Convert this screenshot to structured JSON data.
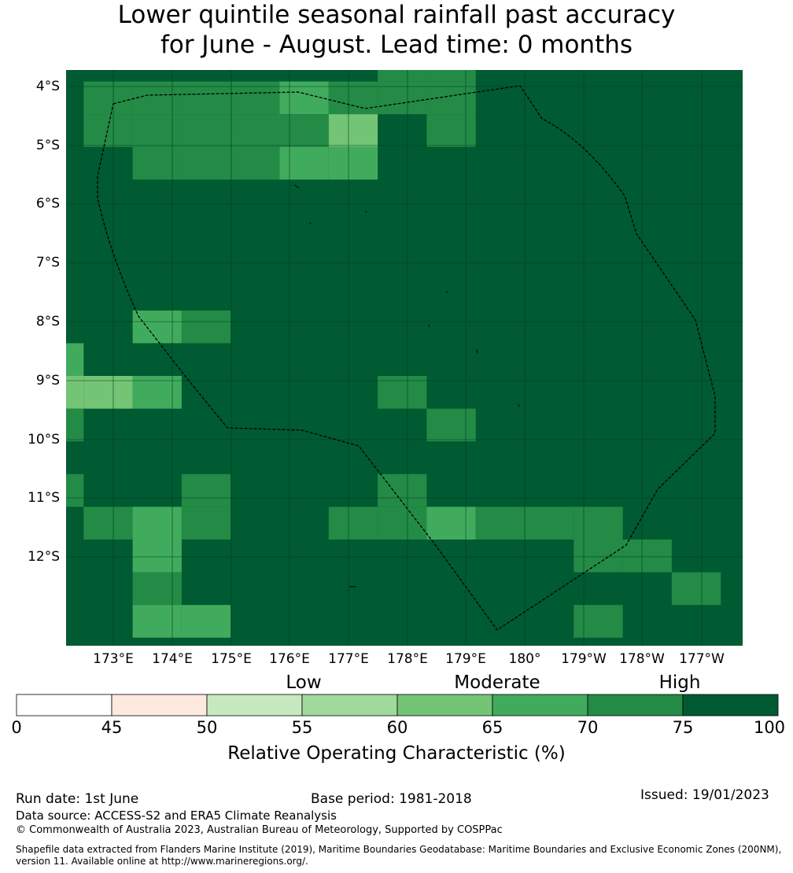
{
  "title_line1": "Lower quintile seasonal rainfall past accuracy",
  "title_line2": "for June - August. Lead time: 0 months",
  "map": {
    "lat_labels": [
      "4°S",
      "5°S",
      "6°S",
      "7°S",
      "8°S",
      "9°S",
      "10°S",
      "11°S",
      "12°S"
    ],
    "lon_labels": [
      "173°E",
      "174°E",
      "175°E",
      "176°E",
      "177°E",
      "178°E",
      "179°E",
      "180°",
      "179°W",
      "178°W",
      "177°W"
    ],
    "background_value": 80,
    "cells": [
      {
        "lon_index": 7,
        "lat_index": 0,
        "value": 72
      },
      {
        "lon_index": 8,
        "lat_index": 0,
        "value": 72
      },
      {
        "lon_index": 1,
        "lat_index": 1,
        "value": 72
      },
      {
        "lon_index": 2,
        "lat_index": 1,
        "value": 72
      },
      {
        "lon_index": 3,
        "lat_index": 1,
        "value": 72
      },
      {
        "lon_index": 4,
        "lat_index": 1,
        "value": 72
      },
      {
        "lon_index": 5,
        "lat_index": 1,
        "value": 67
      },
      {
        "lon_index": 6,
        "lat_index": 1,
        "value": 72
      },
      {
        "lon_index": 7,
        "lat_index": 1,
        "value": 72
      },
      {
        "lon_index": 8,
        "lat_index": 1,
        "value": 72
      },
      {
        "lon_index": 1,
        "lat_index": 2,
        "value": 72
      },
      {
        "lon_index": 2,
        "lat_index": 2,
        "value": 72
      },
      {
        "lon_index": 3,
        "lat_index": 2,
        "value": 72
      },
      {
        "lon_index": 4,
        "lat_index": 2,
        "value": 72
      },
      {
        "lon_index": 5,
        "lat_index": 2,
        "value": 72
      },
      {
        "lon_index": 6,
        "lat_index": 2,
        "value": 62
      },
      {
        "lon_index": 8,
        "lat_index": 2,
        "value": 72
      },
      {
        "lon_index": 2,
        "lat_index": 3,
        "value": 72
      },
      {
        "lon_index": 3,
        "lat_index": 3,
        "value": 72
      },
      {
        "lon_index": 4,
        "lat_index": 3,
        "value": 72
      },
      {
        "lon_index": 5,
        "lat_index": 3,
        "value": 67
      },
      {
        "lon_index": 6,
        "lat_index": 3,
        "value": 67
      },
      {
        "lon_index": 2,
        "lat_index": 8,
        "value": 67
      },
      {
        "lon_index": 3,
        "lat_index": 8,
        "value": 72
      },
      {
        "lon_index": 0,
        "lat_index": 9,
        "value": 67
      },
      {
        "lon_index": 0,
        "lat_index": 10,
        "value": 62
      },
      {
        "lon_index": 1,
        "lat_index": 10,
        "value": 62
      },
      {
        "lon_index": 2,
        "lat_index": 10,
        "value": 67
      },
      {
        "lon_index": 7,
        "lat_index": 10,
        "value": 72
      },
      {
        "lon_index": 0,
        "lat_index": 11,
        "value": 72
      },
      {
        "lon_index": 8,
        "lat_index": 11,
        "value": 72
      },
      {
        "lon_index": 0,
        "lat_index": 13,
        "value": 72
      },
      {
        "lon_index": 3,
        "lat_index": 13,
        "value": 72
      },
      {
        "lon_index": 7,
        "lat_index": 13,
        "value": 72
      },
      {
        "lon_index": 1,
        "lat_index": 14,
        "value": 72
      },
      {
        "lon_index": 2,
        "lat_index": 14,
        "value": 67
      },
      {
        "lon_index": 3,
        "lat_index": 14,
        "value": 72
      },
      {
        "lon_index": 6,
        "lat_index": 14,
        "value": 72
      },
      {
        "lon_index": 7,
        "lat_index": 14,
        "value": 72
      },
      {
        "lon_index": 8,
        "lat_index": 14,
        "value": 67
      },
      {
        "lon_index": 9,
        "lat_index": 14,
        "value": 72
      },
      {
        "lon_index": 10,
        "lat_index": 14,
        "value": 72
      },
      {
        "lon_index": 11,
        "lat_index": 14,
        "value": 72
      },
      {
        "lon_index": 2,
        "lat_index": 15,
        "value": 67
      },
      {
        "lon_index": 11,
        "lat_index": 15,
        "value": 72
      },
      {
        "lon_index": 12,
        "lat_index": 15,
        "value": 72
      },
      {
        "lon_index": 2,
        "lat_index": 16,
        "value": 72
      },
      {
        "lon_index": 13,
        "lat_index": 16,
        "value": 72
      },
      {
        "lon_index": 2,
        "lat_index": 17,
        "value": 67
      },
      {
        "lon_index": 3,
        "lat_index": 17,
        "value": 67
      },
      {
        "lon_index": 11,
        "lat_index": 17,
        "value": 72
      }
    ],
    "grid": {
      "columns": 14,
      "rows": 18
    }
  },
  "colorbar": {
    "category_labels": [
      "Low",
      "Moderate",
      "High"
    ],
    "ticks": [
      "0",
      "45",
      "50",
      "55",
      "60",
      "65",
      "70",
      "75",
      "100"
    ],
    "bins": [
      {
        "from": 0,
        "to": 45,
        "color": "#ffffff"
      },
      {
        "from": 45,
        "to": 50,
        "color": "#fee9df"
      },
      {
        "from": 50,
        "to": 55,
        "color": "#c7e9c0"
      },
      {
        "from": 55,
        "to": 60,
        "color": "#a1d99b"
      },
      {
        "from": 60,
        "to": 65,
        "color": "#74c476"
      },
      {
        "from": 65,
        "to": 70,
        "color": "#41ab5d"
      },
      {
        "from": 70,
        "to": 75,
        "color": "#238b45"
      },
      {
        "from": 75,
        "to": 100,
        "color": "#005a32"
      }
    ],
    "title": "Relative Operating Characteristic (%)"
  },
  "footer": {
    "run_date": "Run date: 1st June",
    "base_period": "Base period: 1981-2018",
    "issued": "Issued: 19/01/2023",
    "data_source": "Data source: ACCESS-S2 and ERA5 Climate Reanalysis",
    "copyright": "© Commonwealth of Australia 2023, Australian Bureau of Meteorology, Supported by COSPPac",
    "shapefile": "Shapefile data extracted from Flanders Marine Institute (2019), Maritime Boundaries Geodatabase: Maritime Boundaries and Exclusive Economic Zones (200NM), version 11. Available online at http://www.marineregions.org/."
  }
}
